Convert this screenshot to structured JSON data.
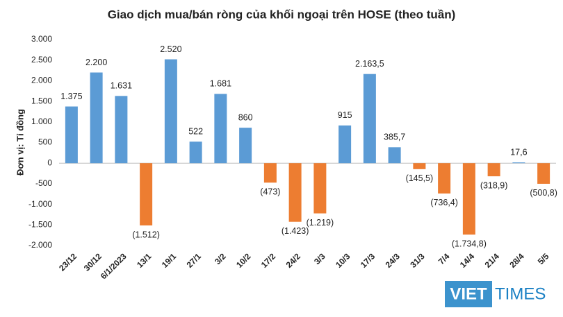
{
  "chart_data": {
    "type": "bar",
    "title": "Giao dịch mua/bán ròng của khối ngoại trên HOSE (theo tuần)",
    "y_label": "Đơn vị: Tỉ đồng",
    "categories": [
      "23/12",
      "30/12",
      "6/1/2023",
      "13/1",
      "19/1",
      "27/1",
      "3/2",
      "10/2",
      "17/2",
      "24/2",
      "3/3",
      "10/3",
      "17/3",
      "24/3",
      "31/3",
      "7/4",
      "14/4",
      "21/4",
      "28/4",
      "5/5"
    ],
    "values": [
      1375,
      2200,
      1631,
      -1512,
      2520,
      522,
      1681,
      860,
      -473,
      -1423,
      -1219,
      915,
      2163.5,
      385.7,
      -145.5,
      -736.4,
      -1734.8,
      -318.9,
      17.6,
      -500.8
    ],
    "value_labels": [
      "1.375",
      "2.200",
      "1.631",
      "(1.512)",
      "2.520",
      "522",
      "1.681",
      "860",
      "(473)",
      "(1.423)",
      "(1.219)",
      "915",
      "2.163,5",
      "385,7",
      "(145,5)",
      "(736,4)",
      "(1.734,8)",
      "(318,9)",
      "17,6",
      "(500,8)"
    ],
    "color": "#5b9bd5",
    "negative_color": "#ed7d31",
    "ylim": [
      -2000,
      3000
    ],
    "yticks": [
      {
        "value": -2000,
        "label": "-2.000"
      },
      {
        "value": -1500,
        "label": "-1.500"
      },
      {
        "value": -1000,
        "label": "-1.000"
      },
      -500,
      0,
      500,
      {
        "value": 1000,
        "label": "1.000"
      },
      {
        "value": 1500,
        "label": "1.500"
      },
      {
        "value": 2000,
        "label": "2.000"
      },
      {
        "value": 2500,
        "label": "2.500"
      },
      {
        "value": 3000,
        "label": "3.000"
      }
    ],
    "grid": false,
    "watermark": [
      "VIET",
      "TIMES"
    ]
  }
}
